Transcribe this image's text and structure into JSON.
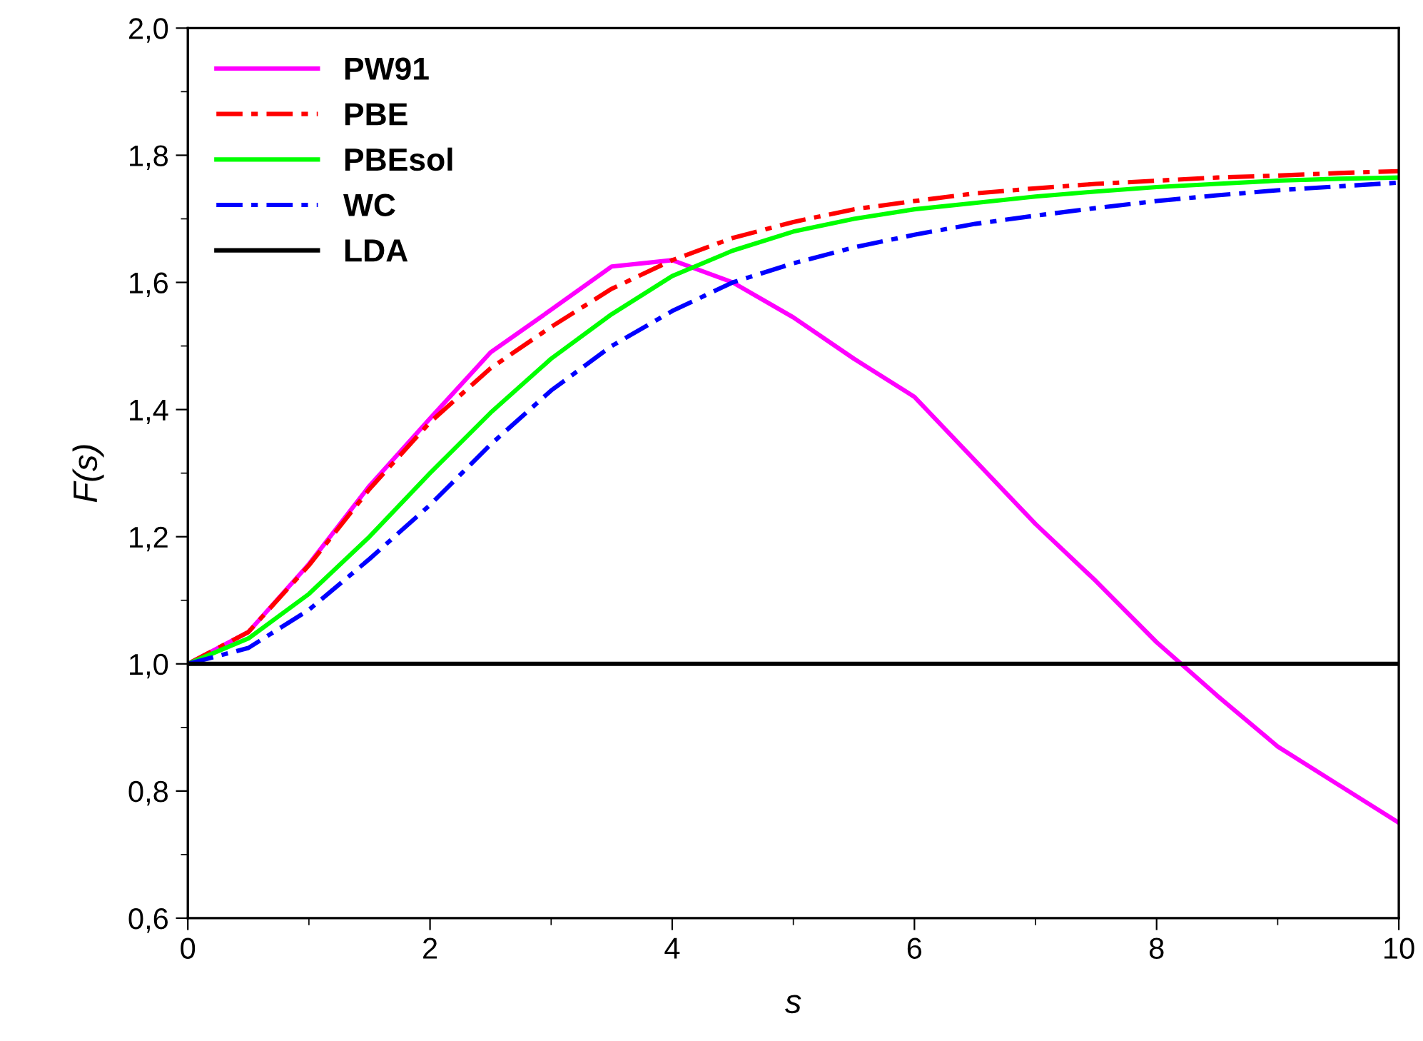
{
  "chart_data": {
    "type": "line",
    "xlabel": "s",
    "ylabel": "F(s)",
    "xlim": [
      0,
      10
    ],
    "ylim": [
      0.6,
      2.0
    ],
    "xticks": [
      0,
      2,
      4,
      6,
      8,
      10
    ],
    "yticks": [
      {
        "value": 0.6,
        "label": "0,6"
      },
      {
        "value": 0.8,
        "label": "0,8"
      },
      {
        "value": 1.0,
        "label": "1,0"
      },
      {
        "value": 1.2,
        "label": "1,2"
      },
      {
        "value": 1.4,
        "label": "1,4"
      },
      {
        "value": 1.6,
        "label": "1,6"
      },
      {
        "value": 1.8,
        "label": "1,8"
      },
      {
        "value": 2.0,
        "label": "2,0"
      }
    ],
    "x": [
      0,
      0.5,
      1,
      1.5,
      2,
      2.5,
      3,
      3.5,
      4,
      4.5,
      5,
      5.5,
      6,
      6.5,
      7,
      7.5,
      8,
      8.5,
      9,
      9.5,
      10
    ],
    "grid": false,
    "legend": "top left",
    "marker": "none",
    "series": [
      {
        "name": "PW91",
        "color": "#ff00ff",
        "line_style": "solid",
        "values": [
          1.0,
          1.05,
          1.157,
          1.28,
          1.386,
          1.49,
          1.557,
          1.625,
          1.635,
          1.6,
          1.545,
          1.48,
          1.42,
          1.32,
          1.22,
          1.13,
          1.034,
          0.95,
          0.87,
          0.81,
          0.75
        ]
      },
      {
        "name": "PBE",
        "color": "#ff0000",
        "line_style": "dashdot",
        "values": [
          1.0,
          1.05,
          1.155,
          1.275,
          1.38,
          1.465,
          1.53,
          1.59,
          1.635,
          1.67,
          1.695,
          1.715,
          1.728,
          1.74,
          1.748,
          1.755,
          1.76,
          1.765,
          1.768,
          1.772,
          1.775
        ]
      },
      {
        "name": "PBEsol",
        "color": "#00ff00",
        "line_style": "solid",
        "values": [
          1.0,
          1.04,
          1.11,
          1.2,
          1.3,
          1.395,
          1.48,
          1.55,
          1.61,
          1.65,
          1.68,
          1.7,
          1.715,
          1.725,
          1.735,
          1.743,
          1.75,
          1.755,
          1.76,
          1.763,
          1.765
        ]
      },
      {
        "name": "WC",
        "color": "#0000ff",
        "line_style": "dashdot",
        "values": [
          1.0,
          1.025,
          1.085,
          1.165,
          1.25,
          1.345,
          1.43,
          1.5,
          1.555,
          1.6,
          1.63,
          1.655,
          1.675,
          1.692,
          1.705,
          1.717,
          1.728,
          1.737,
          1.745,
          1.751,
          1.757
        ]
      },
      {
        "name": "LDA",
        "color": "#000000",
        "line_style": "solid",
        "values": [
          1.0,
          1.0,
          1.0,
          1.0,
          1.0,
          1.0,
          1.0,
          1.0,
          1.0,
          1.0,
          1.0,
          1.0,
          1.0,
          1.0,
          1.0,
          1.0,
          1.0,
          1.0,
          1.0,
          1.0,
          1.0
        ]
      }
    ]
  }
}
